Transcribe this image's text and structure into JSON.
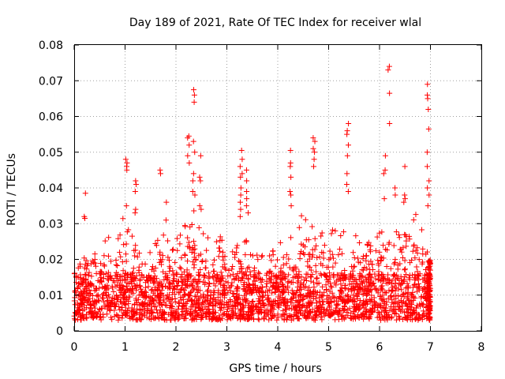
{
  "chart_data": {
    "type": "scatter",
    "title": "Day 189 of 2021, Rate Of TEC Index for receiver wlal",
    "xlabel": "GPS time / hours",
    "ylabel": "ROTI / TECUs",
    "xlim": [
      0,
      8
    ],
    "ylim": [
      0,
      0.08
    ],
    "xticks": [
      "0",
      "1",
      "2",
      "3",
      "4",
      "5",
      "6",
      "7",
      "8"
    ],
    "yticks": [
      "0",
      "0.01",
      "0.02",
      "0.03",
      "0.04",
      "0.05",
      "0.06",
      "0.07",
      "0.08"
    ],
    "grid": true,
    "marker": "+",
    "series_color": "#ff0000",
    "x_data_range": [
      0,
      7.0
    ],
    "baseline_band": [
      0.003,
      0.016
    ],
    "activity_envelope": [
      [
        0.0,
        0.016
      ],
      [
        0.2,
        0.021
      ],
      [
        0.5,
        0.022
      ],
      [
        0.7,
        0.029
      ],
      [
        0.9,
        0.03
      ],
      [
        1.0,
        0.034
      ],
      [
        1.2,
        0.025
      ],
      [
        1.5,
        0.022
      ],
      [
        1.8,
        0.03
      ],
      [
        2.0,
        0.026
      ],
      [
        2.2,
        0.03
      ],
      [
        2.4,
        0.035
      ],
      [
        2.7,
        0.028
      ],
      [
        3.0,
        0.026
      ],
      [
        3.2,
        0.03
      ],
      [
        3.5,
        0.023
      ],
      [
        3.8,
        0.022
      ],
      [
        4.0,
        0.025
      ],
      [
        4.2,
        0.028
      ],
      [
        4.5,
        0.033
      ],
      [
        4.8,
        0.03
      ],
      [
        5.0,
        0.028
      ],
      [
        5.3,
        0.032
      ],
      [
        5.6,
        0.026
      ],
      [
        5.9,
        0.025
      ],
      [
        6.1,
        0.03
      ],
      [
        6.3,
        0.038
      ],
      [
        6.6,
        0.036
      ],
      [
        6.8,
        0.03
      ],
      [
        7.0,
        0.02
      ]
    ],
    "bursts": [
      {
        "x": 0.2,
        "y": [
          0.0385,
          0.0315,
          0.032
        ]
      },
      {
        "x": 1.03,
        "y": [
          0.047,
          0.048,
          0.046,
          0.045,
          0.035
        ]
      },
      {
        "x": 1.22,
        "y": [
          0.042,
          0.041,
          0.039,
          0.034,
          0.033
        ]
      },
      {
        "x": 1.71,
        "y": [
          0.045,
          0.044
        ]
      },
      {
        "x": 1.8,
        "y": [
          0.036,
          0.031
        ]
      },
      {
        "x": 2.25,
        "y": [
          0.0545,
          0.054,
          0.052,
          0.049,
          0.047
        ]
      },
      {
        "x": 2.35,
        "y": [
          0.0675,
          0.066,
          0.064,
          0.053,
          0.05,
          0.044,
          0.042,
          0.039,
          0.038
        ]
      },
      {
        "x": 2.48,
        "y": [
          0.049,
          0.043,
          0.042,
          0.035,
          0.034
        ]
      },
      {
        "x": 3.28,
        "y": [
          0.0505,
          0.048,
          0.046,
          0.044,
          0.043,
          0.04,
          0.038,
          0.036,
          0.034,
          0.032
        ]
      },
      {
        "x": 3.4,
        "y": [
          0.045,
          0.042,
          0.039,
          0.037,
          0.035,
          0.033
        ]
      },
      {
        "x": 4.25,
        "y": [
          0.0505,
          0.047,
          0.046,
          0.043,
          0.039,
          0.038,
          0.035
        ]
      },
      {
        "x": 4.72,
        "y": [
          0.054,
          0.053,
          0.051,
          0.05,
          0.048,
          0.046
        ]
      },
      {
        "x": 5.38,
        "y": [
          0.058,
          0.056,
          0.055,
          0.052,
          0.049,
          0.044,
          0.041,
          0.039
        ]
      },
      {
        "x": 6.18,
        "y": [
          0.074,
          0.073,
          0.0665,
          0.058
        ]
      },
      {
        "x": 6.1,
        "y": [
          0.049,
          0.045,
          0.044,
          0.037
        ]
      },
      {
        "x": 6.3,
        "y": [
          0.04,
          0.038
        ]
      },
      {
        "x": 6.5,
        "y": [
          0.046,
          0.038,
          0.037,
          0.036
        ]
      },
      {
        "x": 6.95,
        "y": [
          0.069,
          0.066,
          0.065,
          0.062,
          0.0565,
          0.05,
          0.046,
          0.042,
          0.04,
          0.038,
          0.035
        ]
      }
    ]
  }
}
